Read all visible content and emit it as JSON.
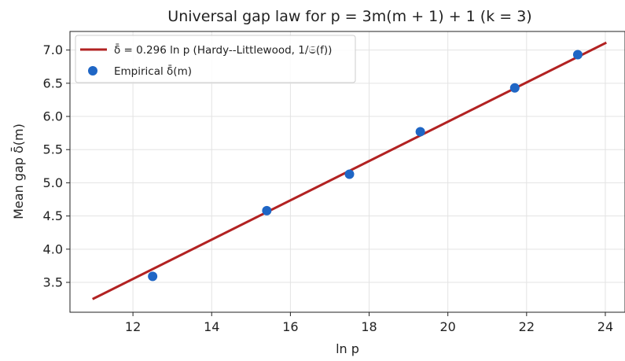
{
  "chart_data": {
    "type": "scatter",
    "title": "Universal gap law for p = 3m(m + 1) + 1 (k = 3)",
    "xlabel": "ln p",
    "ylabel": "Mean gap δ̄(m)",
    "xlim": [
      10.4,
      24.5
    ],
    "ylim": [
      3.05,
      7.28
    ],
    "xticks": [
      12,
      14,
      16,
      18,
      20,
      22,
      24
    ],
    "yticks": [
      3.5,
      4.0,
      4.5,
      5.0,
      5.5,
      6.0,
      6.5,
      7.0
    ],
    "grid": true,
    "legend_position": "top-left",
    "series": [
      {
        "name": "δ̄ = 0.296 ln p (Hardy--Littlewood, 1/𝔖(f))",
        "kind": "line",
        "color": "#b22222",
        "x": [
          11.0,
          24.0
        ],
        "y": [
          3.256,
          7.104
        ]
      },
      {
        "name": "Empirical δ̄(m)",
        "kind": "scatter",
        "color": "#1f66c5",
        "x": [
          12.5,
          15.4,
          17.5,
          19.3,
          21.7,
          23.3
        ],
        "y": [
          3.59,
          4.58,
          5.13,
          5.77,
          6.43,
          6.93
        ]
      }
    ]
  }
}
